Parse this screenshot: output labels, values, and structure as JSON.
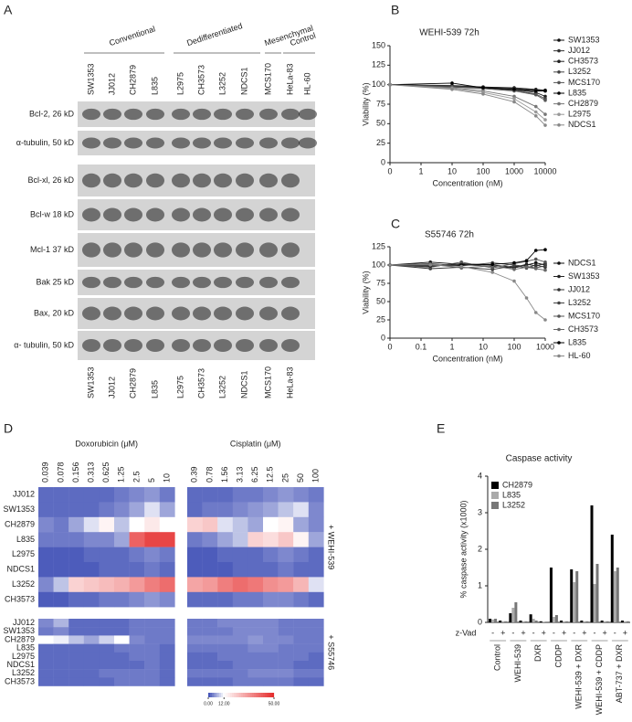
{
  "panel_labels": [
    "A",
    "B",
    "C",
    "D",
    "E"
  ],
  "western_blot": {
    "groups": [
      "Conventional",
      "Dedifferentiated",
      "Mesenchymal",
      "Control"
    ],
    "lanes_top": [
      "SW1353",
      "JJ012",
      "CH2879",
      "L835",
      "L2975",
      "CH3573",
      "L3252",
      "NDCS1",
      "MCS170",
      "HeLa-83",
      "HL-60"
    ],
    "rows": [
      "Bcl-2, 26 kD",
      "α-tubulin, 50 kD",
      "Bcl-xl, 26 kD",
      "Bcl-w 18 kD",
      "Mcl-1 37 kD",
      "Bak 25 kD",
      "Bax, 20 kD",
      "α- tubulin, 50 kD"
    ],
    "lanes_bottom": [
      "SW1353",
      "JJ012",
      "CH2879",
      "L835",
      "L2975",
      "CH3573",
      "L3252",
      "NDCS1",
      "MCS170",
      "HeLa-83"
    ]
  },
  "chart_data": [
    {
      "type": "line",
      "title": "WEHI-539 72h",
      "xlabel": "Concentration (nM)",
      "ylabel": "Viability (%)",
      "xscale": "log",
      "x": [
        0,
        10,
        100,
        1000,
        5000,
        10000
      ],
      "xlim": [
        0,
        10000
      ],
      "xticks": [
        0,
        1,
        10,
        100,
        1000,
        10000
      ],
      "ylim": [
        0,
        150
      ],
      "yticks": [
        0,
        25,
        50,
        75,
        100,
        125,
        150
      ],
      "series": [
        {
          "name": "SW1353",
          "color": "#111111",
          "values": [
            100,
            98,
            97,
            96,
            94,
            93
          ]
        },
        {
          "name": "JJ012",
          "color": "#333333",
          "values": [
            100,
            97,
            96,
            95,
            93,
            92
          ]
        },
        {
          "name": "CH3573",
          "color": "#222222",
          "values": [
            100,
            99,
            97,
            94,
            90,
            85
          ]
        },
        {
          "name": "L3252",
          "color": "#444444",
          "values": [
            100,
            98,
            96,
            93,
            88,
            82
          ]
        },
        {
          "name": "MCS170",
          "color": "#555555",
          "values": [
            100,
            97,
            95,
            92,
            87,
            80
          ]
        },
        {
          "name": "L835",
          "color": "#000000",
          "values": [
            100,
            102,
            96,
            94,
            92,
            92
          ]
        },
        {
          "name": "CH2879",
          "color": "#777777",
          "values": [
            100,
            96,
            92,
            85,
            72,
            62
          ]
        },
        {
          "name": "L2975",
          "color": "#999999",
          "values": [
            100,
            95,
            90,
            82,
            65,
            55
          ]
        },
        {
          "name": "NDCS1",
          "color": "#888888",
          "values": [
            100,
            94,
            88,
            78,
            60,
            48
          ]
        }
      ]
    },
    {
      "type": "line",
      "title": "S55746 72h",
      "xlabel": "Concentration (nM)",
      "ylabel": "Viability (%)",
      "xscale": "log",
      "x": [
        0,
        0.2,
        2,
        20,
        100,
        250,
        500,
        1000
      ],
      "xlim": [
        0,
        1000
      ],
      "xticks": [
        0,
        0.1,
        1,
        10,
        100,
        1000
      ],
      "ylim": [
        0,
        125
      ],
      "yticks": [
        0,
        25,
        50,
        75,
        100,
        125
      ],
      "series": [
        {
          "name": "NDCS1",
          "color": "#111111",
          "values": [
            100,
            104,
            101,
            98,
            96,
            100,
            103,
            100
          ]
        },
        {
          "name": "SW1353",
          "color": "#222222",
          "values": [
            100,
            98,
            102,
            100,
            97,
            101,
            99,
            102
          ]
        },
        {
          "name": "JJ012",
          "color": "#333333",
          "values": [
            100,
            95,
            97,
            94,
            99,
            96,
            100,
            97
          ]
        },
        {
          "name": "L3252",
          "color": "#444444",
          "values": [
            100,
            102,
            99,
            103,
            100,
            98,
            96,
            99
          ]
        },
        {
          "name": "MCS170",
          "color": "#555555",
          "values": [
            100,
            97,
            104,
            96,
            102,
            105,
            108,
            104
          ]
        },
        {
          "name": "CH3573",
          "color": "#666666",
          "values": [
            100,
            101,
            96,
            99,
            94,
            97,
            95,
            93
          ]
        },
        {
          "name": "L835",
          "color": "#000000",
          "values": [
            100,
            99,
            100,
            101,
            103,
            106,
            120,
            121
          ]
        },
        {
          "name": "HL-60",
          "color": "#888888",
          "values": [
            100,
            100,
            98,
            90,
            78,
            55,
            35,
            25
          ]
        }
      ]
    },
    {
      "type": "heatmap",
      "drugs": [
        {
          "name": "Doxorubicin (μM)",
          "columns": [
            0.039,
            0.078,
            0.156,
            0.313,
            0.625,
            1.25,
            2.5,
            5,
            10
          ]
        },
        {
          "name": "Cisplatin (μM)",
          "columns": [
            0.39,
            0.78,
            1.56,
            3.13,
            6.25,
            12.5,
            25,
            50,
            100
          ]
        }
      ],
      "blocks": [
        {
          "label": "+ WEHI-539",
          "rows": [
            "JJ012",
            "SW1353",
            "CH2879",
            "L835",
            "L2975",
            "NDCS1",
            "L3252",
            "CH3573"
          ],
          "values": [
            [
              [
                2,
                2,
                2,
                2,
                2,
                3,
                4,
                5,
                3
              ],
              [
                2,
                2,
                2,
                2,
                3,
                4,
                6,
                10,
                6
              ],
              [
                4,
                3,
                6,
                10,
                14,
                8,
                12,
                16,
                12
              ],
              [
                3,
                3,
                3,
                4,
                4,
                6,
                40,
                45,
                45
              ],
              [
                1,
                1,
                1,
                2,
                2,
                2,
                3,
                4,
                3
              ],
              [
                1,
                1,
                1,
                1,
                2,
                2,
                2,
                3,
                2
              ],
              [
                4,
                8,
                20,
                22,
                24,
                26,
                30,
                35,
                38
              ],
              [
                1,
                1,
                2,
                2,
                3,
                3,
                4,
                5,
                4
              ]
            ],
            [
              [
                2,
                2,
                2,
                3,
                3,
                4,
                5,
                4,
                3
              ],
              [
                2,
                3,
                3,
                4,
                5,
                6,
                8,
                10,
                4
              ],
              [
                20,
                22,
                10,
                8,
                6,
                12,
                14,
                6,
                4
              ],
              [
                3,
                4,
                6,
                8,
                20,
                18,
                22,
                14,
                6
              ],
              [
                1,
                1,
                2,
                2,
                2,
                3,
                4,
                3,
                2
              ],
              [
                1,
                1,
                1,
                2,
                2,
                2,
                3,
                2,
                2
              ],
              [
                28,
                30,
                35,
                38,
                36,
                32,
                30,
                25,
                10
              ],
              [
                2,
                2,
                2,
                3,
                3,
                4,
                4,
                3,
                2
              ]
            ]
          ]
        },
        {
          "label": "+ S55746",
          "rows": [
            "JJ012",
            "SW1353",
            "CH2879",
            "L835",
            "L2975",
            "NDCS1",
            "L3252",
            "CH3573"
          ],
          "values": [
            [
              [
                4,
                7,
                2,
                2,
                2,
                2,
                3,
                3,
                3
              ],
              [
                3,
                4,
                2,
                2,
                2,
                2,
                3,
                3,
                3
              ],
              [
                12,
                11,
                8,
                6,
                9,
                12,
                4,
                3,
                3
              ],
              [
                2,
                2,
                2,
                2,
                2,
                3,
                3,
                3,
                2
              ],
              [
                2,
                2,
                2,
                2,
                2,
                2,
                3,
                3,
                2
              ],
              [
                2,
                2,
                2,
                2,
                2,
                2,
                2,
                3,
                2
              ],
              [
                2,
                2,
                2,
                2,
                3,
                3,
                3,
                3,
                2
              ],
              [
                2,
                2,
                2,
                2,
                2,
                3,
                3,
                3,
                2
              ]
            ],
            [
              [
                3,
                3,
                4,
                4,
                4,
                4,
                3,
                3,
                3
              ],
              [
                3,
                3,
                3,
                4,
                4,
                4,
                3,
                3,
                3
              ],
              [
                4,
                4,
                4,
                4,
                5,
                4,
                4,
                3,
                3
              ],
              [
                3,
                3,
                3,
                3,
                4,
                4,
                3,
                3,
                3
              ],
              [
                2,
                2,
                3,
                3,
                3,
                3,
                3,
                3,
                2
              ],
              [
                2,
                2,
                2,
                3,
                3,
                3,
                3,
                2,
                2
              ],
              [
                3,
                3,
                3,
                3,
                4,
                4,
                4,
                3,
                3
              ],
              [
                2,
                2,
                2,
                3,
                3,
                3,
                3,
                2,
                2
              ]
            ]
          ]
        }
      ],
      "colorbar": {
        "colors": [
          "#3d4db5",
          "#ffffff",
          "#e52a2a"
        ],
        "ticks": [
          {
            "value": 0,
            "label": "0.00"
          },
          {
            "value": 12,
            "label": "12.00"
          },
          {
            "value": 50,
            "label": "50.00"
          }
        ]
      }
    },
    {
      "type": "bar",
      "title": "Caspase activity",
      "ylabel": "% caspase activity (x1000)",
      "ylim": [
        0,
        4
      ],
      "yticks": [
        0,
        1,
        2,
        3,
        4
      ],
      "row_label": "z-Vad",
      "groups": [
        "Control",
        "WEHI-539",
        "DXR",
        "CDDP",
        "WEHI-539 + DXR",
        "WEHI-539 + CDDP",
        "ABT-737 + DXR"
      ],
      "categories": [
        "-",
        "+",
        "-",
        "+",
        "-",
        "+",
        "-",
        "+",
        "-",
        "+",
        "-",
        "+",
        "-",
        "+"
      ],
      "series": [
        {
          "name": "CH2879",
          "color": "#000000",
          "values": [
            0.1,
            0.05,
            0.25,
            0.05,
            0.22,
            0.03,
            1.5,
            0.05,
            1.45,
            0.05,
            3.2,
            0.05,
            2.4,
            0.05
          ]
        },
        {
          "name": "L835",
          "color": "#aaaaaa",
          "values": [
            0.08,
            0.03,
            0.4,
            0.03,
            0.1,
            0.02,
            0.15,
            0.03,
            1.1,
            0.03,
            1.05,
            0.03,
            1.4,
            0.03
          ]
        },
        {
          "name": "L3252",
          "color": "#777777",
          "values": [
            0.1,
            0.03,
            0.55,
            0.03,
            0.05,
            0.02,
            0.2,
            0.03,
            1.4,
            0.03,
            1.6,
            0.03,
            1.5,
            0.03
          ]
        }
      ]
    }
  ]
}
